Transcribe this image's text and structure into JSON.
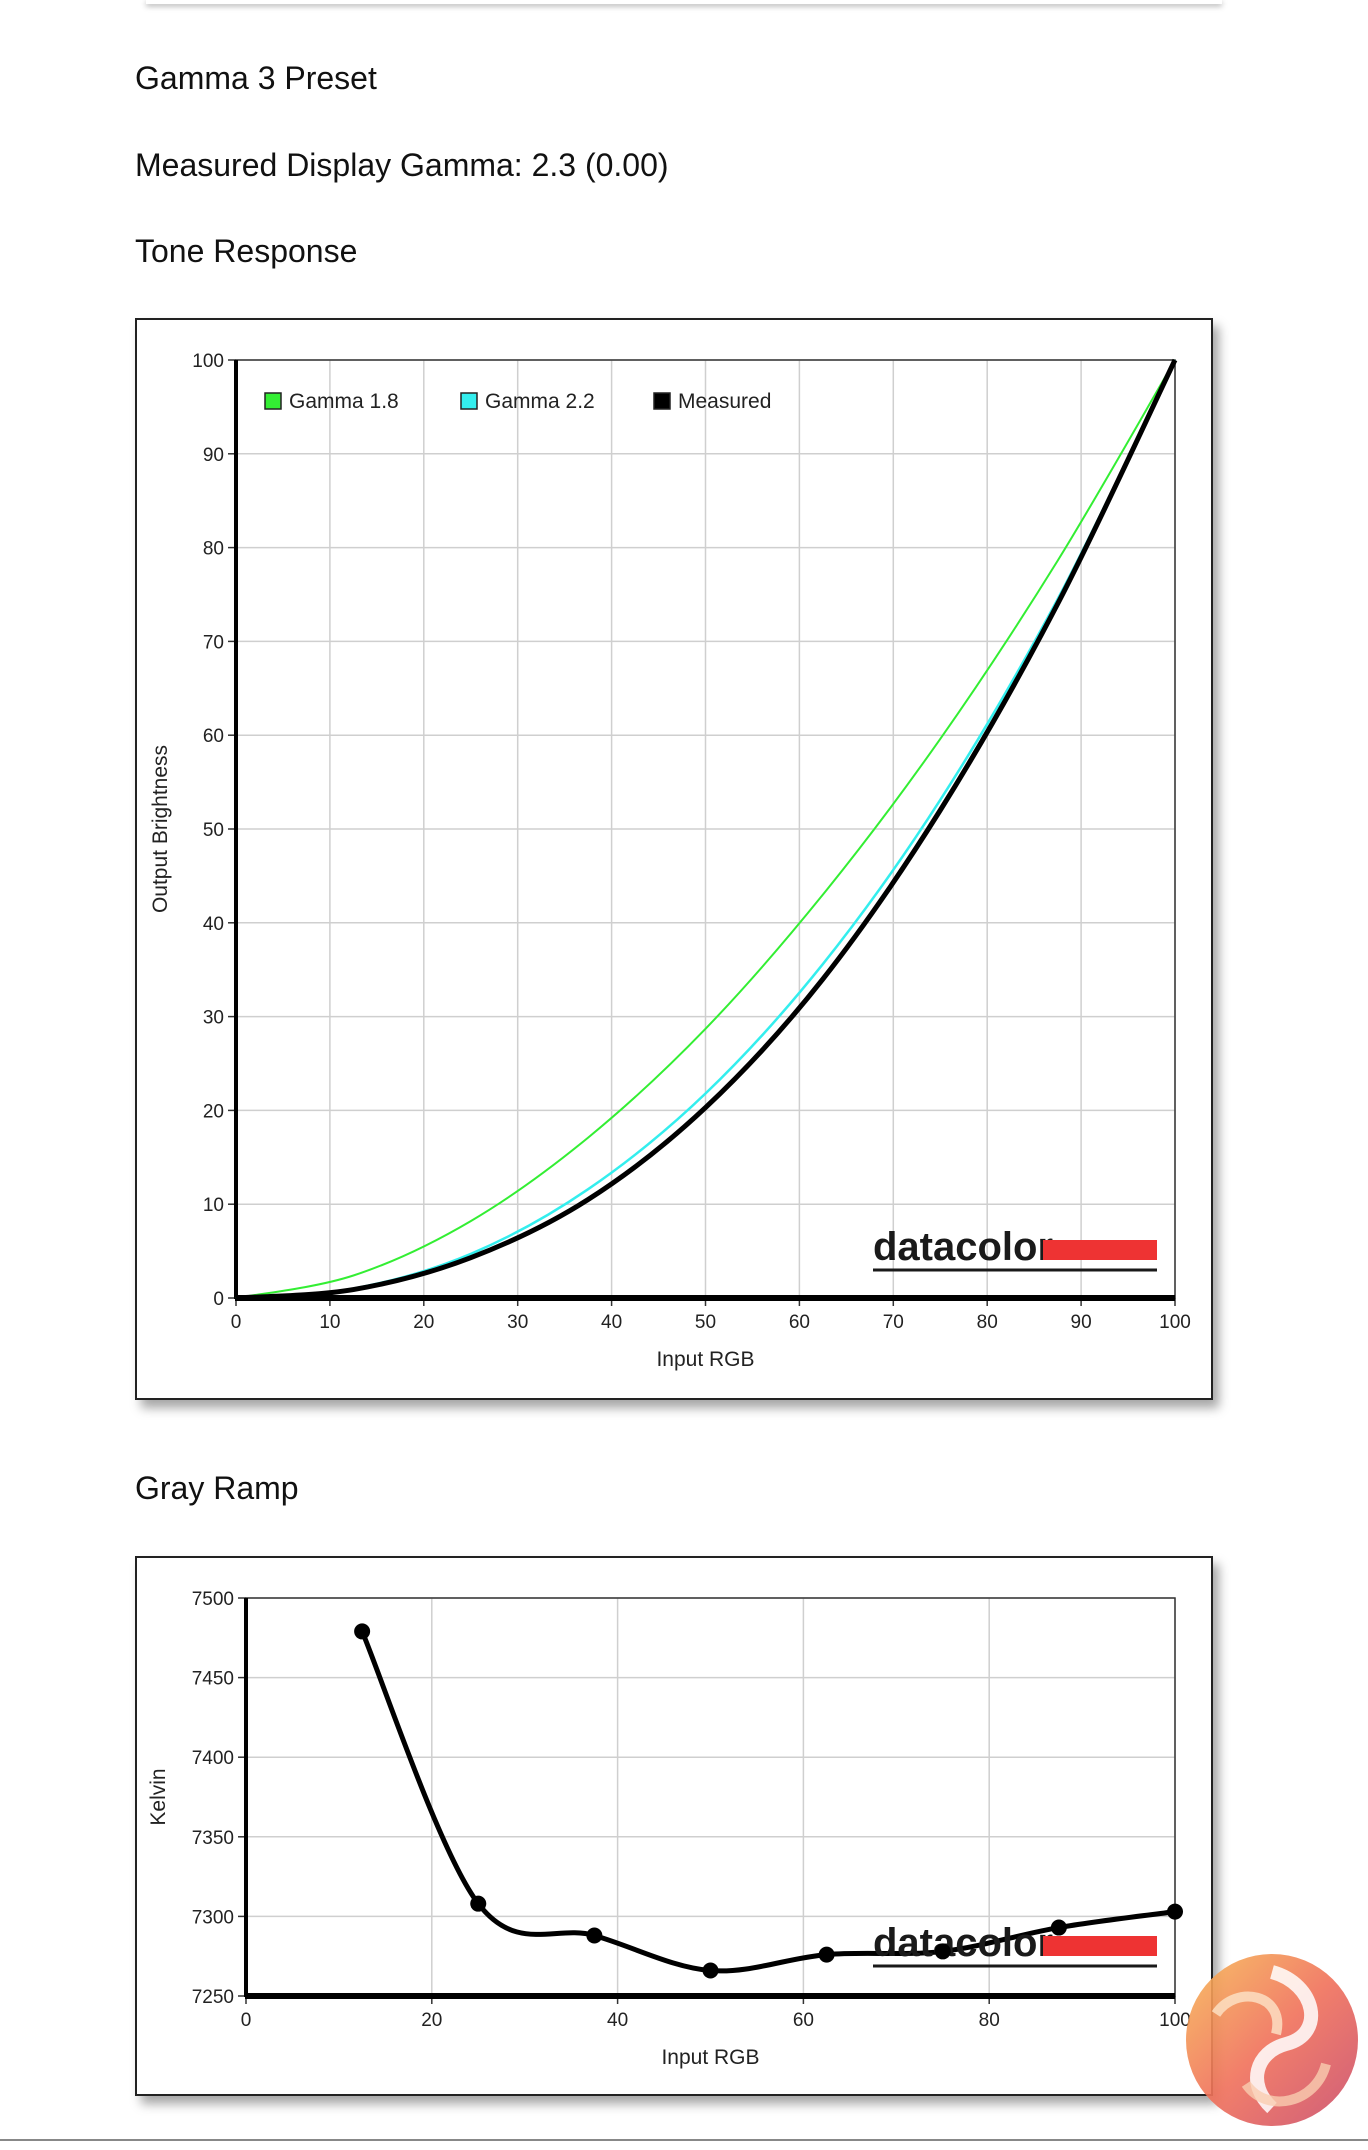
{
  "headings": {
    "preset": "Gamma 3 Preset",
    "measured_gamma": "Measured Display Gamma: 2.3 (0.00)",
    "tone_response": "Tone Response",
    "gray_ramp": "Gray Ramp"
  },
  "colors": {
    "gamma18": "#33ee33",
    "gamma22": "#33eeee",
    "measured": "#000000",
    "grid": "#cfcfcf",
    "logo_bar": "#ee3333"
  },
  "logo": {
    "text": "datacolor"
  },
  "chart_data": [
    {
      "type": "line",
      "id": "tone-response",
      "xlabel": "Input RGB",
      "ylabel": "Output Brightness",
      "xlim": [
        0,
        100
      ],
      "ylim": [
        0,
        100
      ],
      "xticks": [
        0,
        10,
        20,
        30,
        40,
        50,
        60,
        70,
        80,
        90,
        100
      ],
      "yticks": [
        0,
        10,
        20,
        30,
        40,
        50,
        60,
        70,
        80,
        90,
        100
      ],
      "grid": true,
      "legend": "top-left",
      "series": [
        {
          "name": "Gamma 1.8",
          "x": [
            0,
            12.5,
            25,
            37.5,
            50,
            62.5,
            75,
            87.5,
            100
          ],
          "y": [
            0,
            2.4,
            8.2,
            17.1,
            28.7,
            43.0,
            59.6,
            78.6,
            100
          ]
        },
        {
          "name": "Gamma 2.2",
          "x": [
            0,
            12.5,
            25,
            37.5,
            50,
            62.5,
            75,
            87.5,
            100
          ],
          "y": [
            0,
            1.0,
            4.7,
            11.6,
            21.8,
            35.6,
            53.1,
            74.5,
            100
          ]
        },
        {
          "name": "Measured",
          "x": [
            0,
            12.5,
            25,
            37.5,
            50,
            62.5,
            75,
            87.5,
            100
          ],
          "y": [
            0,
            0.9,
            4.3,
            10.5,
            20.3,
            34.0,
            52.0,
            74.0,
            100
          ]
        }
      ]
    },
    {
      "type": "line",
      "id": "gray-ramp",
      "xlabel": "Input RGB",
      "ylabel": "Kelvin",
      "xlim": [
        0,
        100
      ],
      "ylim": [
        7250,
        7500
      ],
      "xticks": [
        0,
        20,
        40,
        60,
        80,
        100
      ],
      "yticks": [
        7250,
        7300,
        7350,
        7400,
        7450,
        7500
      ],
      "grid": true,
      "series": [
        {
          "x": [
            12.5,
            25,
            37.5,
            50,
            62.5,
            75,
            87.5,
            100
          ],
          "y": [
            7479,
            7308,
            7288,
            7266,
            7276,
            7278,
            7293,
            7303
          ]
        }
      ]
    }
  ]
}
